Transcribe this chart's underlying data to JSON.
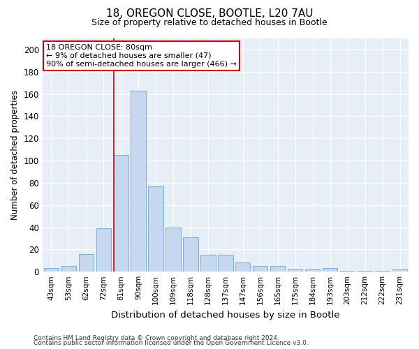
{
  "title1": "18, OREGON CLOSE, BOOTLE, L20 7AU",
  "title2": "Size of property relative to detached houses in Bootle",
  "xlabel": "Distribution of detached houses by size in Bootle",
  "ylabel": "Number of detached properties",
  "categories": [
    "43sqm",
    "53sqm",
    "62sqm",
    "72sqm",
    "81sqm",
    "90sqm",
    "100sqm",
    "109sqm",
    "118sqm",
    "128sqm",
    "137sqm",
    "147sqm",
    "156sqm",
    "165sqm",
    "175sqm",
    "184sqm",
    "193sqm",
    "203sqm",
    "212sqm",
    "222sqm",
    "231sqm"
  ],
  "values": [
    3,
    5,
    16,
    39,
    105,
    163,
    77,
    40,
    31,
    15,
    15,
    8,
    5,
    5,
    2,
    2,
    3,
    1,
    1,
    1,
    2
  ],
  "bar_color": "#c5d8ef",
  "bar_edge_color": "#7aaed6",
  "highlight_bar_index": 4,
  "highlight_line_color": "#cc0000",
  "annotation_text": "18 OREGON CLOSE: 80sqm\n← 9% of detached houses are smaller (47)\n90% of semi-detached houses are larger (466) →",
  "annotation_box_color": "#ffffff",
  "annotation_box_edge": "#cc0000",
  "ylim": [
    0,
    210
  ],
  "yticks": [
    0,
    20,
    40,
    60,
    80,
    100,
    120,
    140,
    160,
    180,
    200
  ],
  "background_color": "#e8eef8",
  "footer1": "Contains HM Land Registry data © Crown copyright and database right 2024.",
  "footer2": "Contains public sector information licensed under the Open Government Licence v3.0."
}
